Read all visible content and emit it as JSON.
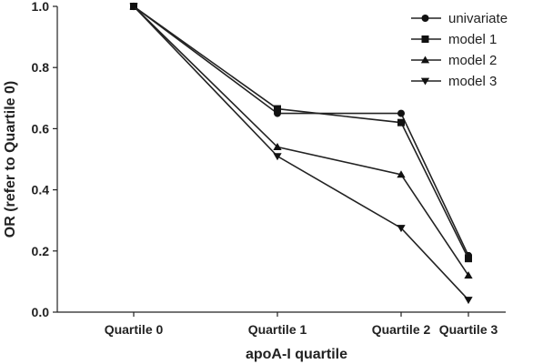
{
  "chart_data": {
    "type": "line",
    "title": "",
    "xlabel": "apoA-I quartile",
    "ylabel": "OR (refer to Quartile 0)",
    "categories": [
      "Quartile 0",
      "Quartile 1",
      "Quartile 2",
      "Quartile 3"
    ],
    "ylim": [
      0.0,
      1.0
    ],
    "yticks": [
      "0.0",
      "0.2",
      "0.4",
      "0.6",
      "0.8",
      "1.0"
    ],
    "legend_position": "top-right",
    "grid": false,
    "series": [
      {
        "name": "univariate",
        "marker": "circle",
        "values": [
          1.0,
          0.65,
          0.65,
          0.185
        ]
      },
      {
        "name": "model 1",
        "marker": "square",
        "values": [
          1.0,
          0.665,
          0.62,
          0.175
        ]
      },
      {
        "name": "model 2",
        "marker": "triangle-up",
        "values": [
          1.0,
          0.54,
          0.45,
          0.12
        ]
      },
      {
        "name": "model 3",
        "marker": "triangle-down",
        "values": [
          1.0,
          0.51,
          0.275,
          0.04
        ]
      }
    ],
    "colors": {
      "line": "#222222",
      "marker": "#111111"
    }
  }
}
